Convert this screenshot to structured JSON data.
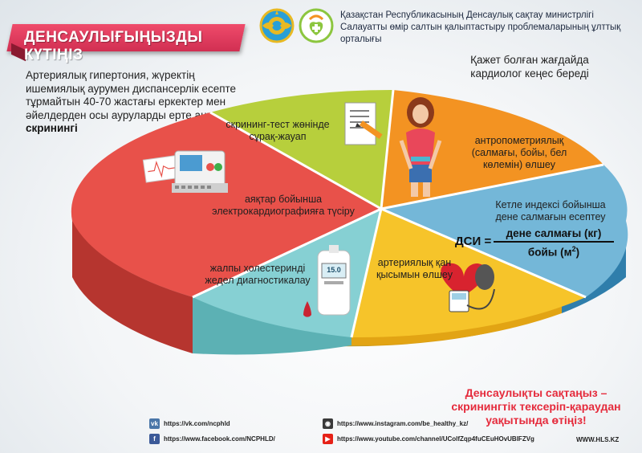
{
  "header": {
    "banner": "ДЕНСАУЛЫҒЫҢЫЗДЫ КҮТІҢІЗ",
    "ministry_line1": "Қазақстан Республикасының Денсаулық сақтау министрлігі",
    "ministry_line2": "Салауатты өмір салтын қалыптастыру проблемаларының ұлттық орталығы"
  },
  "intro": {
    "text": "Артериялық гипертония, жүректің ишемиялық аурумен диспансерлік есепте тұрмайтын 40-70 жастағы еркектер мен әйелдерден осы ауруларды ерте анықтау ",
    "bold": "скринингі"
  },
  "cardiologist_note": "Қажет болған жағдайда кардиолог кеңес береді",
  "segments": {
    "questionnaire": "скрининг-тест жөнінде сұрақ-жауап",
    "anthropometry": "антропометриялық (салмағы, бойы, бел көлемін) өлшеу",
    "bmi": "Кетле индексі бойынша дене салмағын есептеу",
    "blood_pressure": "артериялық қан қысымын өлшеу",
    "cholesterol": "жалпы холестеринді жедел диагностикалау",
    "ecg": "аяқтар бойынша электрокардиографияға түсіру"
  },
  "formula": {
    "lhs": "ДСИ =",
    "numerator": "дене салмағы (кг)",
    "denominator": "бойы (м",
    "exponent": "2",
    "denominator_close": ")"
  },
  "glucometer_value": "15.0",
  "appeal": "Денсаулықты сақтаңыз – скринингтік тексеріп-қараудан уақытында өтіңіз!",
  "footer": {
    "vk": "https://vk.com/ncphld",
    "facebook": "https://www.facebook.com/NCPHLD/",
    "instagram": "https://www.instagram.com/be_healthy_kz/",
    "youtube": "https://www.youtube.com/channel/UColfZqp4fuCEuHOvUBIFZVg",
    "website": "WWW.HLS.KZ"
  },
  "colors": {
    "banner": "#d12f52",
    "green": "#b7cf3c",
    "orange": "#f39322",
    "blue": "#74b7d8",
    "yellow": "#f6c42a",
    "teal": "#86d0d3",
    "red": "#e8514a",
    "appeal": "#e52b3c"
  }
}
